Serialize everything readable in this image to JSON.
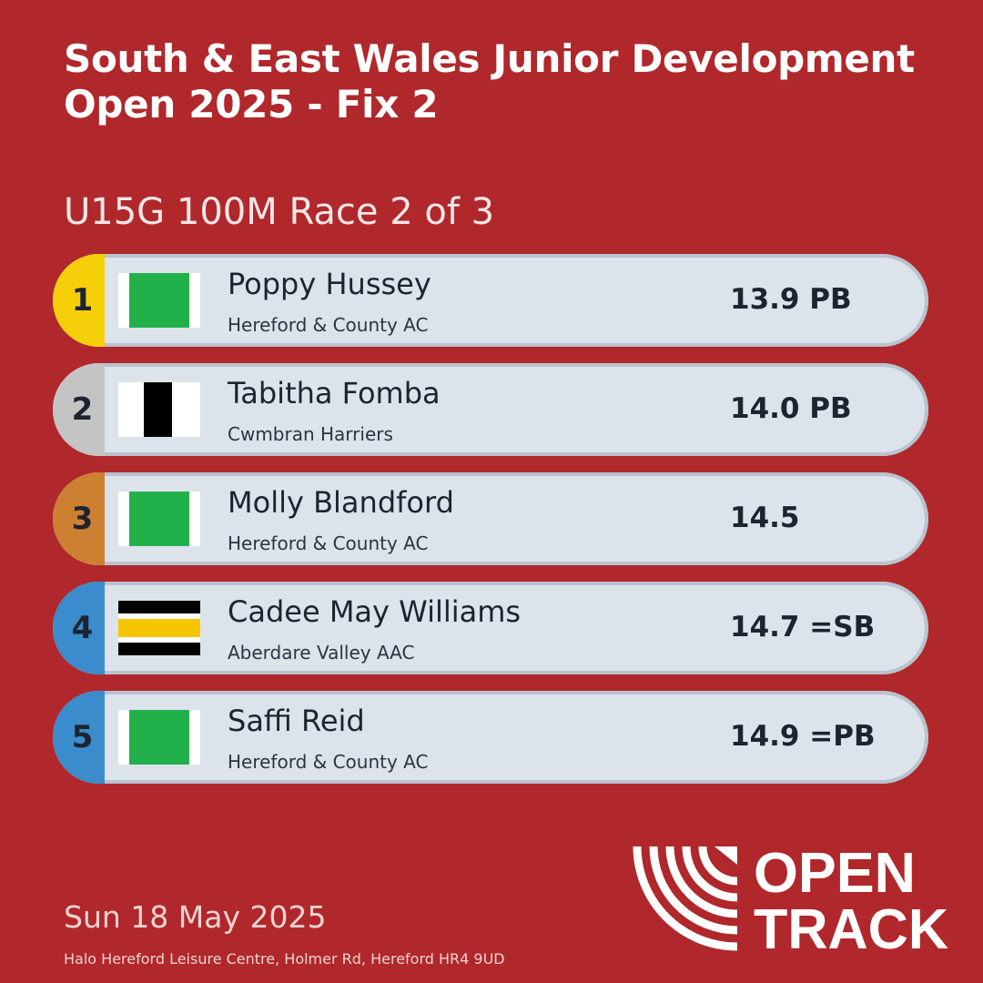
{
  "header": {
    "title_lines": [
      "South & East Wales Junior Development",
      "Open 2025 - Fix 2"
    ],
    "race": "U15G 100M Race 2 of 3"
  },
  "results": [
    {
      "position": "1",
      "name": "Poppy Hussey",
      "club": "Hereford & County AC",
      "time": "13.9 PB"
    },
    {
      "position": "2",
      "name": "Tabitha Fomba",
      "club": "Cwmbran Harriers",
      "time": "14.0 PB"
    },
    {
      "position": "3",
      "name": "Molly Blandford",
      "club": "Hereford & County AC",
      "time": "14.5"
    },
    {
      "position": "4",
      "name": "Cadee May Williams",
      "club": "Aberdare Valley AAC",
      "time": "14.7 =SB"
    },
    {
      "position": "5",
      "name": "Saffi Reid",
      "club": "Hereford & County AC",
      "time": "14.9 =PB"
    }
  ],
  "footer": {
    "date": "Sun 18 May 2025",
    "venue": "Halo Hereford Leisure Centre, Holmer Rd, Hereford HR4 9UD"
  },
  "logo": {
    "line1": "OPEN",
    "line2": "TRACK"
  }
}
